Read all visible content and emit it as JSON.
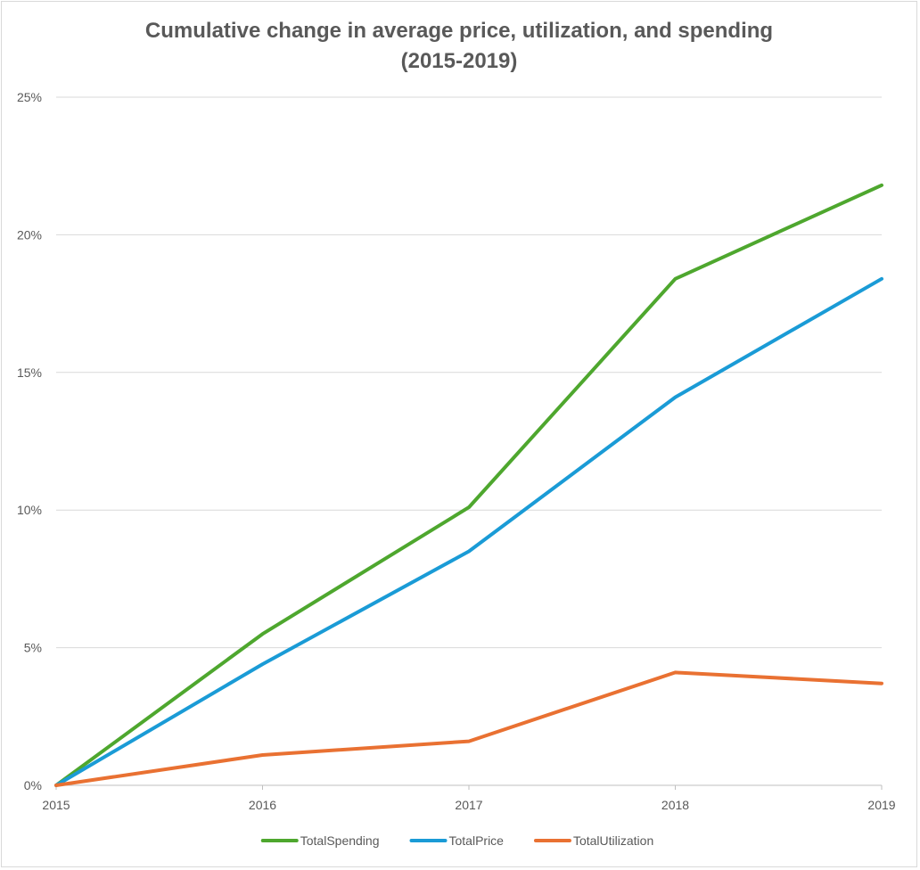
{
  "chart_data": {
    "type": "line",
    "title_lines": [
      "Cumulative change in average price, utilization, and spending",
      "(2015-2019)"
    ],
    "xlabel": "",
    "ylabel": "",
    "categories": [
      "2015",
      "2016",
      "2017",
      "2018",
      "2019"
    ],
    "ylim": [
      0,
      25
    ],
    "y_ticks": [
      0,
      5,
      10,
      15,
      20,
      25
    ],
    "y_tick_labels": [
      "0%",
      "5%",
      "10%",
      "15%",
      "20%",
      "25%"
    ],
    "grid": true,
    "legend_position": "bottom",
    "series": [
      {
        "name": "TotalSpending",
        "color": "#4ea72e",
        "values": [
          0,
          5.5,
          10.1,
          18.4,
          21.8
        ]
      },
      {
        "name": "TotalPrice",
        "color": "#1a9bd6",
        "values": [
          0,
          4.4,
          8.5,
          14.1,
          18.4
        ]
      },
      {
        "name": "TotalUtilization",
        "color": "#e97132",
        "values": [
          0,
          1.1,
          1.6,
          4.1,
          3.7
        ]
      }
    ]
  }
}
